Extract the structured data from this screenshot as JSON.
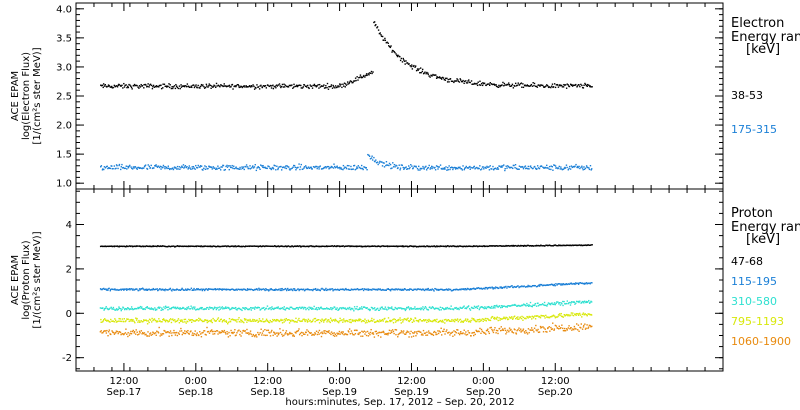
{
  "chart_data": [
    {
      "type": "scatter",
      "ylabel": [
        "ACE EPAM",
        "log(Electron Flux)",
        "[1/(cm²s ster MeV)]"
      ],
      "ylim": [
        0.9,
        4.1
      ],
      "yticks": [
        "1.0",
        "1.5",
        "2.0",
        "2.5",
        "3.0",
        "3.5",
        "4.0"
      ],
      "legend_title": [
        "Electron",
        "Energy range",
        "[keV]"
      ],
      "legend_placement": "right",
      "series": [
        {
          "name": "38-53",
          "color": "#000000",
          "baseline": 2.68,
          "noise": 0.06,
          "event_peak": 3.8
        },
        {
          "name": "175-315",
          "color": "#1a7fd6",
          "baseline": 1.28,
          "noise": 0.07,
          "event_peak": 1.5
        }
      ]
    },
    {
      "type": "scatter",
      "ylabel": [
        "ACE EPAM",
        "log(Proton Flux)",
        "[1/(cm²s ster MeV)]"
      ],
      "ylim": [
        -2.6,
        5.6
      ],
      "yticks": [
        "-2",
        "0",
        "2",
        "4"
      ],
      "legend_title": [
        "Proton",
        "Energy range",
        "[keV]"
      ],
      "legend_placement": "right",
      "series": [
        {
          "name": "47-68",
          "color": "#000000",
          "baseline": 3.05,
          "noise": 0.03
        },
        {
          "name": "115-195",
          "color": "#1a7fd6",
          "baseline": 1.1,
          "noise": 0.07
        },
        {
          "name": "310-580",
          "color": "#2ee0d0",
          "baseline": 0.25,
          "noise": 0.12
        },
        {
          "name": "795-1193",
          "color": "#d8e80a",
          "baseline": -0.3,
          "noise": 0.15
        },
        {
          "name": "1060-1900",
          "color": "#e88a0e",
          "baseline": -0.85,
          "noise": 0.25
        }
      ]
    }
  ],
  "x_axis": {
    "label": "hours:minutes, Sep. 17, 2012 – Sep. 20, 2012",
    "data_range_hours": [
      8,
      90
    ],
    "xlim_hours": [
      4,
      112
    ],
    "ticks": [
      {
        "hours": 12,
        "time": "12:00",
        "date": "Sep.17"
      },
      {
        "hours": 24,
        "time": "0:00",
        "date": "Sep.18"
      },
      {
        "hours": 36,
        "time": "12:00",
        "date": "Sep.18"
      },
      {
        "hours": 48,
        "time": "0:00",
        "date": "Sep.19"
      },
      {
        "hours": 60,
        "time": "12:00",
        "date": "Sep.19"
      },
      {
        "hours": 72,
        "time": "0:00",
        "date": "Sep.20"
      },
      {
        "hours": 84,
        "time": "12:00",
        "date": "Sep.20"
      }
    ],
    "event_hours": 53.5
  }
}
